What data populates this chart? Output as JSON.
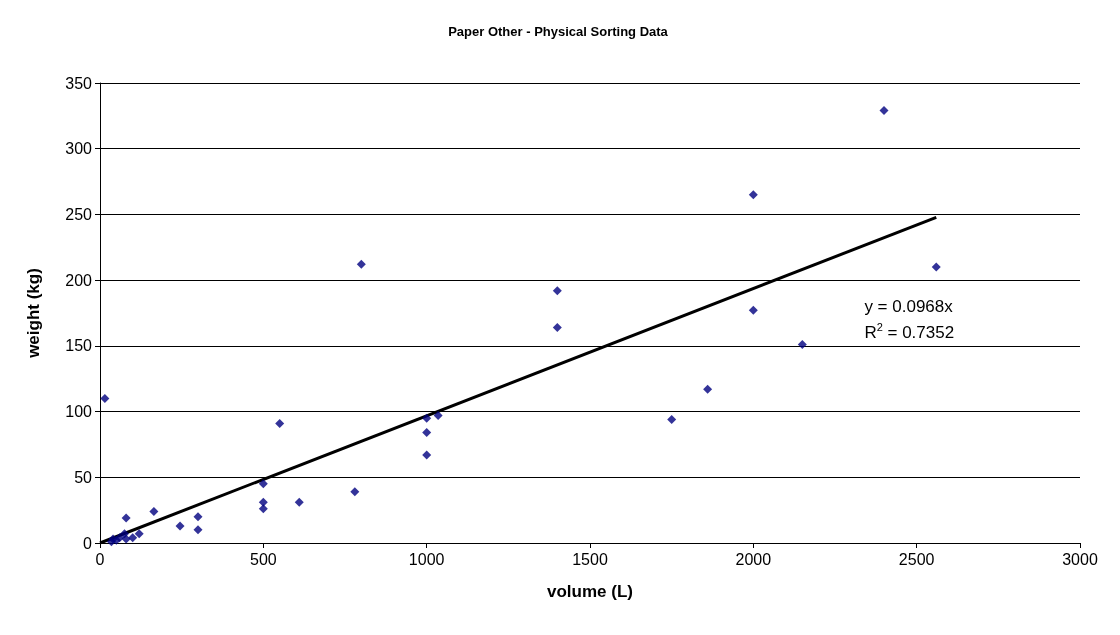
{
  "chart_data": {
    "type": "scatter",
    "title": "Paper Other - Physical Sorting Data",
    "xlabel": "volume (L)",
    "ylabel": "weight (kg)",
    "xlim": [
      0,
      3000
    ],
    "xticks": [
      0,
      500,
      1000,
      1500,
      2000,
      2500,
      3000
    ],
    "ylim": [
      0,
      350
    ],
    "yticks": [
      0,
      50,
      100,
      150,
      200,
      250,
      300,
      350
    ],
    "grid": "y",
    "series": [
      {
        "marker": "diamond",
        "color": "#000080",
        "x": [
          15,
          35,
          40,
          50,
          60,
          75,
          80,
          80,
          100,
          120,
          165,
          245,
          300,
          300,
          500,
          500,
          500,
          550,
          610,
          780,
          800,
          1000,
          1000,
          1000,
          1035,
          1400,
          1400,
          1750,
          1860,
          2000,
          2000,
          2150,
          2400,
          2560
        ],
        "values": [
          110,
          1,
          3,
          2,
          4,
          7,
          19,
          3,
          4,
          7,
          24,
          13,
          20,
          10,
          45,
          31,
          26,
          91,
          31,
          39,
          212,
          95,
          84,
          67,
          97,
          192,
          164,
          94,
          117,
          265,
          177,
          151,
          329,
          210
        ]
      },
      {
        "type": "line",
        "marker": "none",
        "color": "#000000",
        "x": [
          0,
          2560
        ],
        "values": [
          0,
          247.8
        ]
      }
    ],
    "annotations": [
      "y = 0.0968x",
      "R$^{2}$ = 0.7352"
    ]
  }
}
